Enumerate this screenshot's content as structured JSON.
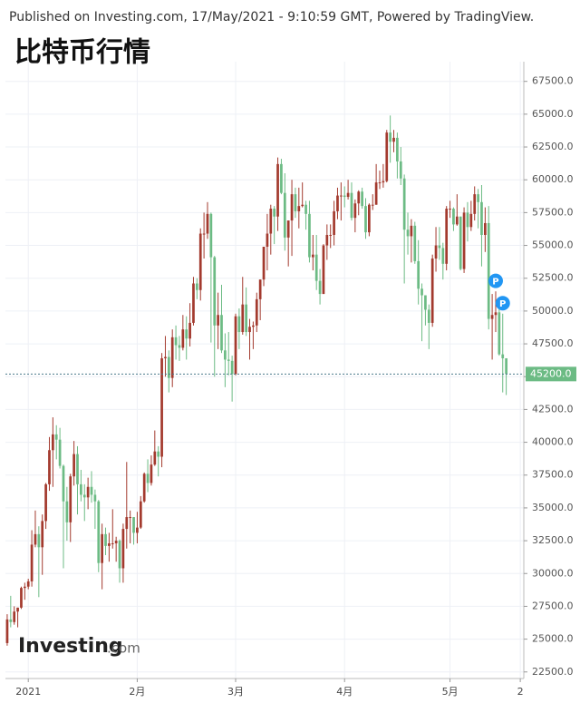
{
  "published": "Published on Investing.com, 17/May/2021 - 9:10:59 GMT, Powered by TradingView.",
  "chart_data": {
    "type": "candlestick",
    "title": "比特币行情",
    "up_color": "#a33a2e",
    "down_color": "#6cbb84",
    "categories": [
      null,
      null,
      null,
      null,
      null,
      null,
      null,
      null,
      null,
      null,
      null,
      null,
      null,
      null,
      null,
      null,
      null,
      null,
      null,
      null,
      null,
      null,
      null,
      null,
      null,
      null,
      null,
      null,
      null,
      null,
      null,
      null,
      null,
      null,
      null,
      null,
      null,
      null,
      null,
      null,
      null,
      null,
      null,
      null,
      null,
      null,
      null,
      null,
      null,
      null,
      null,
      null,
      null,
      null,
      null,
      null,
      null,
      null,
      null,
      null,
      null,
      null,
      null,
      null,
      null,
      null,
      null,
      null,
      null,
      null,
      null,
      null,
      null,
      null,
      null,
      null,
      null,
      null,
      null,
      null,
      null,
      null,
      null,
      null,
      null,
      null,
      null,
      null,
      null,
      null,
      null,
      null,
      null,
      null,
      null,
      null,
      null,
      null,
      null,
      null,
      null,
      null,
      null,
      null,
      null,
      null,
      null,
      null,
      null,
      null,
      null,
      null,
      null,
      null,
      null,
      null,
      null,
      null,
      null,
      null,
      null,
      null,
      null,
      null,
      null,
      null,
      null,
      null,
      null,
      null,
      null,
      null,
      null,
      null,
      null,
      null,
      null,
      null,
      null,
      null,
      null,
      null,
      null
    ],
    "open": [
      24700,
      26500,
      26300,
      27100,
      27400,
      28900,
      29000,
      29400,
      32200,
      33000,
      32000,
      34000,
      36800,
      39400,
      40600,
      40200,
      38200,
      35500,
      33900,
      37400,
      39100,
      36800,
      36000,
      35800,
      36600,
      36000,
      35500,
      30800,
      33000,
      32100,
      32300,
      32300,
      32500,
      30400,
      33400,
      34300,
      34300,
      33100,
      33500,
      35500,
      37600,
      36900,
      38300,
      39300,
      38900,
      46400,
      46500,
      44900,
      48000,
      47400,
      47200,
      48600,
      47900,
      49100,
      52100,
      51600,
      55900,
      55900,
      57400,
      54100,
      48900,
      49700,
      47000,
      46300,
      46200,
      45200,
      49600,
      48400,
      50500,
      48400,
      48800,
      48900,
      50900,
      52400,
      54900,
      55900,
      57800,
      57200,
      61200,
      59000,
      55600,
      56900,
      58900,
      57600,
      58000,
      58100,
      57400,
      54100,
      54300,
      52300,
      51300,
      55000,
      55800,
      55800,
      57600,
      58800,
      58800,
      58700,
      59000,
      57100,
      58200,
      59100,
      58000,
      56000,
      58100,
      58100,
      59800,
      59800,
      59900,
      63600,
      62900,
      63200,
      61400,
      60100,
      56200,
      55700,
      56500,
      53800,
      51700,
      51200,
      50100,
      49100,
      54000,
      55000,
      54800,
      53600,
      57800,
      57800,
      56600,
      57200,
      53200,
      57500,
      56400,
      57400,
      58900,
      58300,
      55800,
      56700,
      49400,
      49700,
      49900,
      46700,
      46400
    ],
    "high": [
      26900,
      28300,
      27500,
      27400,
      29000,
      29300,
      29600,
      33300,
      34800,
      33600,
      34500,
      36900,
      40400,
      41900,
      41300,
      41100,
      38300,
      36600,
      37600,
      40100,
      39700,
      37900,
      36800,
      37300,
      37800,
      36400,
      35600,
      33800,
      33500,
      33100,
      34900,
      32800,
      32600,
      33800,
      38500,
      34800,
      34300,
      34700,
      35900,
      37700,
      38700,
      39000,
      40900,
      39700,
      46800,
      48100,
      47000,
      48600,
      48900,
      48100,
      49700,
      49600,
      50600,
      52600,
      52500,
      56300,
      57500,
      58300,
      57500,
      54200,
      51400,
      52000,
      48300,
      48400,
      46600,
      49800,
      50200,
      52600,
      51800,
      49400,
      49200,
      51400,
      52400,
      54900,
      57400,
      58100,
      58000,
      61700,
      61600,
      60500,
      56900,
      60000,
      59400,
      59400,
      59800,
      58400,
      58400,
      55800,
      55800,
      53200,
      55100,
      56600,
      56600,
      58400,
      59400,
      59800,
      59500,
      60000,
      59800,
      58500,
      59200,
      59400,
      58600,
      58200,
      58900,
      61200,
      60700,
      61200,
      63800,
      64900,
      63800,
      63600,
      62500,
      60400,
      57500,
      57000,
      56800,
      55400,
      52100,
      51200,
      50500,
      54300,
      56400,
      56400,
      55200,
      58000,
      58400,
      57900,
      58900,
      57200,
      57900,
      58300,
      58400,
      59500,
      59300,
      59600,
      57900,
      58000,
      51300,
      51500,
      50700,
      49800,
      46400
    ],
    "low": [
      24500,
      25900,
      26100,
      25900,
      27300,
      28000,
      28800,
      29000,
      32000,
      28200,
      29900,
      33400,
      36300,
      36600,
      38700,
      38000,
      30400,
      32500,
      32400,
      36700,
      34500,
      35500,
      34000,
      34900,
      35400,
      33400,
      30100,
      28800,
      31400,
      30900,
      31900,
      30900,
      29300,
      29300,
      31900,
      32300,
      32200,
      32300,
      33400,
      35400,
      36200,
      36700,
      38200,
      37400,
      38100,
      45000,
      43800,
      44200,
      46300,
      46200,
      47000,
      46300,
      47300,
      48900,
      50900,
      50800,
      54000,
      55500,
      47600,
      45000,
      47100,
      46800,
      44200,
      45100,
      43100,
      45100,
      47100,
      48200,
      48100,
      46300,
      47100,
      48400,
      49300,
      51900,
      53100,
      54300,
      55100,
      56100,
      58900,
      54600,
      53400,
      54200,
      57100,
      56300,
      57900,
      56200,
      53700,
      53100,
      51600,
      50500,
      51300,
      53900,
      54800,
      55000,
      57000,
      56900,
      57900,
      58500,
      56900,
      56000,
      57300,
      57800,
      55500,
      55700,
      57700,
      58100,
      59300,
      59400,
      59800,
      61300,
      62100,
      60100,
      59600,
      52100,
      54300,
      53700,
      53600,
      50500,
      47700,
      48900,
      47100,
      48800,
      53000,
      53900,
      52400,
      53100,
      57100,
      56100,
      56500,
      53100,
      52900,
      55300,
      56100,
      56900,
      56300,
      53400,
      54500,
      48600,
      46300,
      48400,
      46600,
      43800,
      43600
    ],
    "close": [
      26500,
      26300,
      27100,
      27400,
      28900,
      29000,
      29400,
      32200,
      33000,
      32000,
      34000,
      36800,
      39400,
      40600,
      40200,
      38200,
      35500,
      33900,
      37400,
      39100,
      36800,
      36000,
      35800,
      36600,
      36000,
      35500,
      30800,
      33000,
      32100,
      32300,
      32300,
      32500,
      30400,
      33400,
      34300,
      34300,
      33100,
      33500,
      35500,
      37600,
      36900,
      38300,
      39300,
      38900,
      46400,
      46500,
      44900,
      48000,
      47400,
      47200,
      48600,
      47900,
      49100,
      52100,
      51600,
      55900,
      55900,
      57400,
      54100,
      48900,
      49700,
      47000,
      46300,
      46200,
      45200,
      49600,
      48400,
      50500,
      48400,
      48800,
      48900,
      50900,
      52400,
      54900,
      55900,
      57800,
      57200,
      61200,
      59000,
      55600,
      56900,
      58900,
      57600,
      58000,
      58100,
      57400,
      54100,
      54300,
      52300,
      51300,
      55000,
      55800,
      55800,
      57600,
      58800,
      58800,
      58700,
      59000,
      57100,
      58200,
      59100,
      58000,
      56000,
      58100,
      58100,
      59800,
      59800,
      59900,
      63600,
      62900,
      63200,
      61400,
      60100,
      56200,
      55700,
      56500,
      53800,
      51700,
      51200,
      50100,
      49100,
      54000,
      55000,
      54800,
      53600,
      57800,
      57800,
      56600,
      57200,
      53200,
      57500,
      56400,
      57400,
      58900,
      58300,
      55800,
      56700,
      49400,
      49700,
      49900,
      46700,
      46400,
      45200
    ],
    "last_label": "45200.0",
    "markers": [
      {
        "label": "P",
        "index": 139,
        "value": 52300
      },
      {
        "label": "P",
        "index": 141,
        "value": 50600
      }
    ],
    "xlim": [
      -0.5,
      147
    ],
    "xticks": [
      {
        "value": 6,
        "label": "2021"
      },
      {
        "value": 37,
        "label": "2月"
      },
      {
        "value": 65,
        "label": "3月"
      },
      {
        "value": 96,
        "label": "4月"
      },
      {
        "value": 126,
        "label": "5月"
      },
      {
        "value": 146,
        "label": "2"
      }
    ],
    "ylim": [
      22000,
      69000
    ],
    "yticks": [
      {
        "value": 22500,
        "label": "22500.0"
      },
      {
        "value": 25000,
        "label": "25000.0"
      },
      {
        "value": 27500,
        "label": "27500.0"
      },
      {
        "value": 30000,
        "label": "30000.0"
      },
      {
        "value": 32500,
        "label": "32500.0"
      },
      {
        "value": 35000,
        "label": "35000.0"
      },
      {
        "value": 37500,
        "label": "37500.0"
      },
      {
        "value": 40000,
        "label": "40000.0"
      },
      {
        "value": 42500,
        "label": "42500.0"
      },
      {
        "value": 45000,
        "label": "45000.0"
      },
      {
        "value": 47500,
        "label": "47500.0"
      },
      {
        "value": 50000,
        "label": "50000.0"
      },
      {
        "value": 52500,
        "label": "52500.0"
      },
      {
        "value": 55000,
        "label": "55000.0"
      },
      {
        "value": 57500,
        "label": "57500.0"
      },
      {
        "value": 60000,
        "label": "60000.0"
      },
      {
        "value": 62500,
        "label": "62500.0"
      },
      {
        "value": 65000,
        "label": "65000.0"
      },
      {
        "value": 67500,
        "label": "67500.0"
      }
    ],
    "grid": true,
    "watermark": {
      "brand": "Investing",
      "suffix": ".com"
    }
  }
}
